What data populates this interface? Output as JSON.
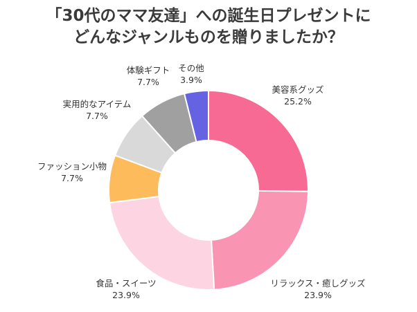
{
  "title_line1": "「30代のママ友達」への誕生日プレゼントに",
  "title_line2": "どんなジャンルものを贈りましたか？",
  "chart_data": {
    "type": "donut",
    "title": "「30代のママ友達」への誕生日プレゼントに どんなジャンルものを贈りましたか？",
    "categories": [
      "美容系グッズ",
      "リラックス・癒しグッズ",
      "食品・スイーツ",
      "ファッション小物",
      "実用的なアイテム",
      "体験ギフト",
      "その他"
    ],
    "values": [
      25.2,
      23.9,
      23.9,
      7.7,
      7.7,
      7.7,
      3.9
    ],
    "value_labels": [
      "25.2%",
      "23.9%",
      "23.9%",
      "7.7%",
      "7.7%",
      "7.7%",
      "3.9%"
    ],
    "colors": [
      "#f76a94",
      "#f994b3",
      "#fdd5e2",
      "#fdbb5b",
      "#d9d9d9",
      "#a0a0a0",
      "#6563e1"
    ],
    "start_angle": "12 o'clock",
    "direction": "clockwise"
  }
}
